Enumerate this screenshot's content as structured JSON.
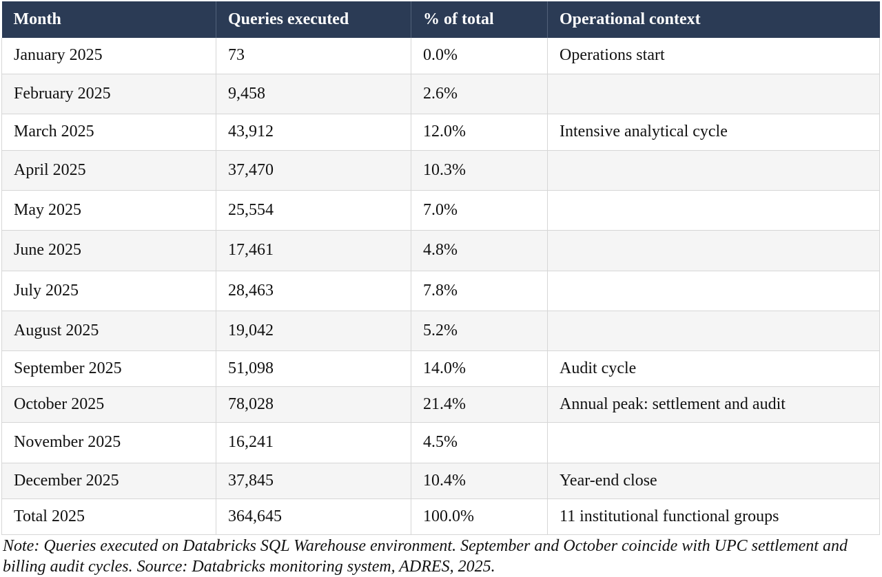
{
  "table": {
    "headers": [
      "Month",
      "Queries executed",
      "% of total",
      "Operational context"
    ],
    "rows": [
      {
        "month": "January 2025",
        "queries": "73",
        "percent": "0.0%",
        "context": "Operations start"
      },
      {
        "month": "February 2025",
        "queries": "9,458",
        "percent": "2.6%",
        "context": ""
      },
      {
        "month": "March 2025",
        "queries": "43,912",
        "percent": "12.0%",
        "context": "Intensive analytical cycle"
      },
      {
        "month": "April 2025",
        "queries": "37,470",
        "percent": "10.3%",
        "context": ""
      },
      {
        "month": "May 2025",
        "queries": "25,554",
        "percent": "7.0%",
        "context": ""
      },
      {
        "month": "June 2025",
        "queries": "17,461",
        "percent": "4.8%",
        "context": ""
      },
      {
        "month": "July 2025",
        "queries": "28,463",
        "percent": "7.8%",
        "context": ""
      },
      {
        "month": "August 2025",
        "queries": "19,042",
        "percent": "5.2%",
        "context": ""
      },
      {
        "month": "September 2025",
        "queries": "51,098",
        "percent": "14.0%",
        "context": "Audit cycle"
      },
      {
        "month": "October 2025",
        "queries": "78,028",
        "percent": "21.4%",
        "context": "Annual peak: settlement and audit"
      },
      {
        "month": "November 2025",
        "queries": "16,241",
        "percent": "4.5%",
        "context": ""
      },
      {
        "month": "December 2025",
        "queries": "37,845",
        "percent": "10.4%",
        "context": "Year-end close"
      },
      {
        "month": "Total 2025",
        "queries": "364,645",
        "percent": "100.0%",
        "context": "11 institutional functional groups"
      }
    ]
  },
  "note": "Note: Queries executed on Databricks SQL Warehouse environment. September and October coincide with UPC settlement and billing audit cycles. Source: Databricks monitoring system, ADRES, 2025.",
  "colors": {
    "header_background": "#2b3b55",
    "header_text": "#ffffff",
    "stripe_background": "#f5f5f5",
    "grid_line": "#d6d6d6"
  }
}
